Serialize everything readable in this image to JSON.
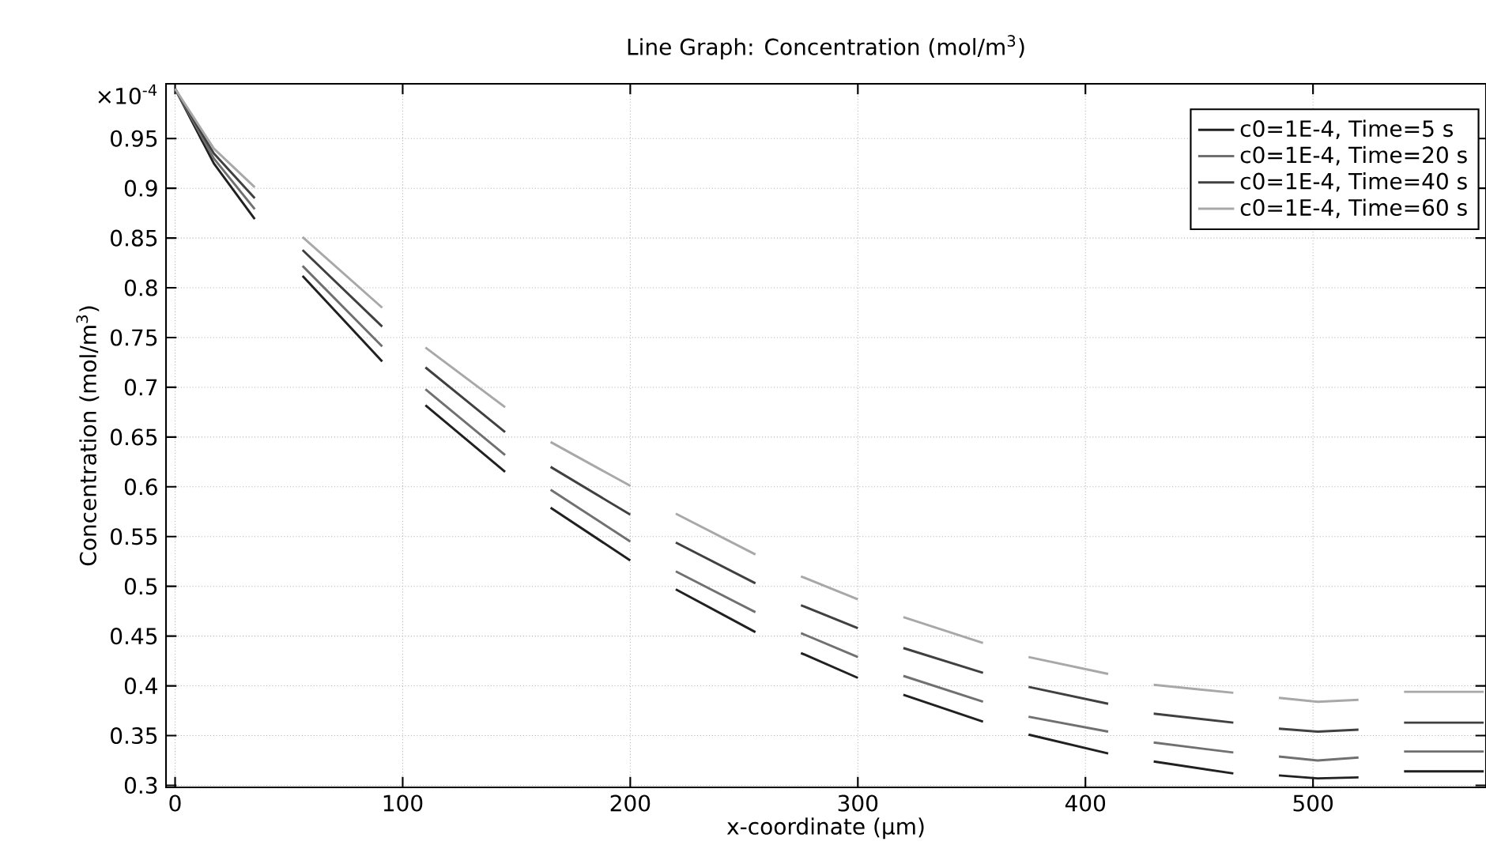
{
  "chart_data": {
    "type": "line",
    "title": "Line Graph: Concentration (mol/m$^{3}$)",
    "xlabel": "x-coordinate (µm)",
    "ylabel": "Concentration (mol/m$^{3}$)",
    "annotations": [
      "×10$^{-4}$"
    ],
    "x": [
      0,
      17,
      35,
      45,
      56,
      91,
      100,
      110,
      145,
      155,
      165,
      200,
      210,
      220,
      255,
      265,
      275,
      300,
      310,
      320,
      355,
      365,
      375,
      410,
      420,
      430,
      465,
      475,
      485,
      502,
      520,
      530,
      540,
      575
    ],
    "series": [
      {
        "name": "c0=1E-4, Time=5 s",
        "color": "#202020",
        "values": [
          1.0,
          0.925,
          0.869,
          null,
          0.812,
          0.726,
          null,
          0.682,
          0.615,
          null,
          0.579,
          0.526,
          null,
          0.497,
          0.454,
          null,
          0.433,
          0.408,
          null,
          0.391,
          0.364,
          null,
          0.351,
          0.332,
          null,
          0.324,
          0.312,
          null,
          0.31,
          0.307,
          0.308,
          null,
          0.314,
          0.314
        ]
      },
      {
        "name": "c0=1E-4, Time=20 s",
        "color": "#707070",
        "values": [
          1.0,
          0.93,
          0.879,
          null,
          0.822,
          0.741,
          null,
          0.698,
          0.632,
          null,
          0.597,
          0.545,
          null,
          0.515,
          0.474,
          null,
          0.453,
          0.429,
          null,
          0.41,
          0.384,
          null,
          0.369,
          0.354,
          null,
          0.343,
          0.333,
          null,
          0.329,
          0.325,
          0.328,
          null,
          0.334,
          0.334
        ]
      },
      {
        "name": "c0=1E-4, Time=40 s",
        "color": "#404040",
        "values": [
          1.0,
          0.935,
          0.89,
          null,
          0.838,
          0.761,
          null,
          0.72,
          0.655,
          null,
          0.62,
          0.572,
          null,
          0.544,
          0.503,
          null,
          0.481,
          0.458,
          null,
          0.438,
          0.413,
          null,
          0.399,
          0.382,
          null,
          0.372,
          0.363,
          null,
          0.357,
          0.354,
          0.356,
          null,
          0.363,
          0.363
        ]
      },
      {
        "name": "c0=1E-4, Time=60 s",
        "color": "#a8a8a8",
        "values": [
          1.0,
          0.94,
          0.901,
          null,
          0.851,
          0.78,
          null,
          0.74,
          0.68,
          null,
          0.645,
          0.601,
          null,
          0.573,
          0.532,
          null,
          0.51,
          0.487,
          null,
          0.469,
          0.443,
          null,
          0.429,
          0.412,
          null,
          0.401,
          0.393,
          null,
          0.388,
          0.384,
          0.386,
          null,
          0.394,
          0.394
        ]
      }
    ],
    "xlim": [
      -4,
      576
    ],
    "ylim": [
      0.298,
      1.005
    ],
    "xticks": [
      0,
      100,
      200,
      300,
      400,
      500
    ],
    "yticks": [
      0.3,
      0.35,
      0.4,
      0.45,
      0.5,
      0.55,
      0.6,
      0.65,
      0.7,
      0.75,
      0.8,
      0.85,
      0.9,
      0.95
    ],
    "grid": true,
    "legend": "top right",
    "marker": "none",
    "line_style": "solid"
  }
}
